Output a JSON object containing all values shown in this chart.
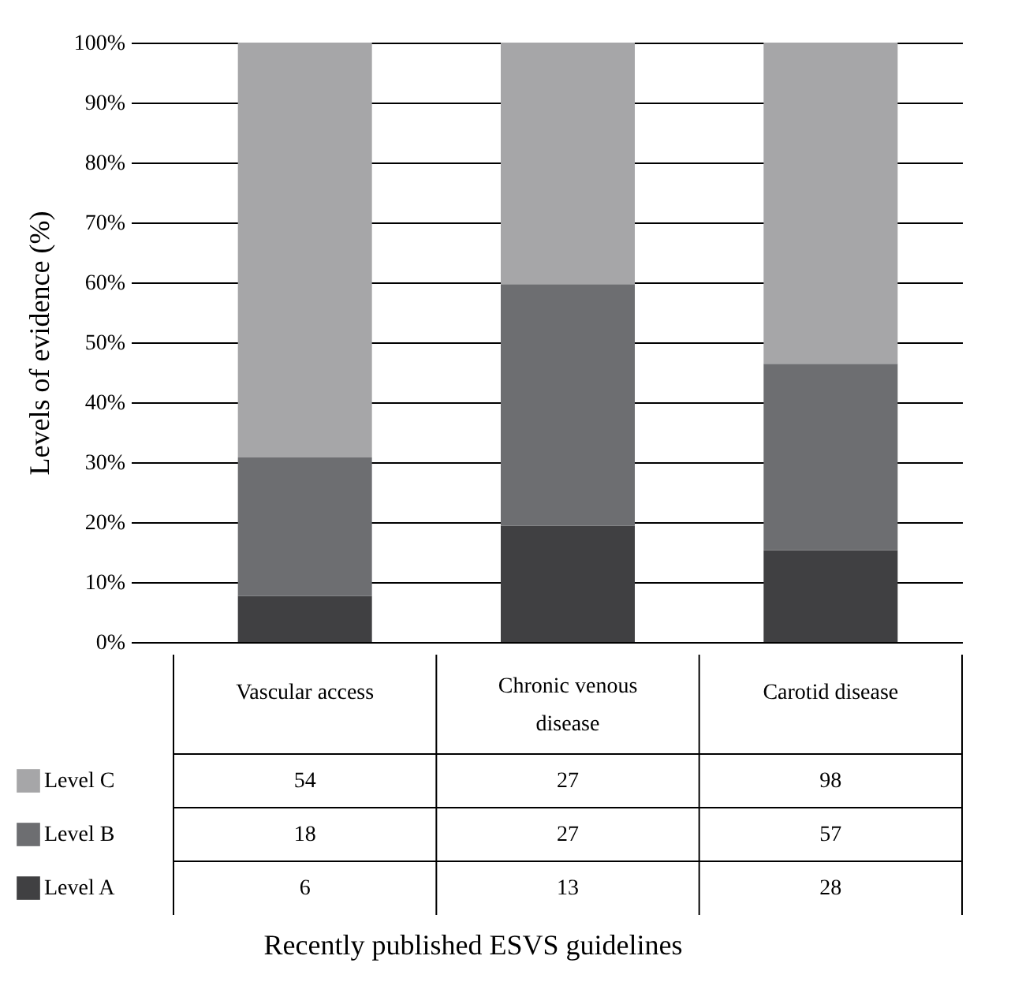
{
  "chart_data": {
    "type": "bar",
    "stacked": true,
    "ylabel": "Levels of evidence (%)",
    "categories": [
      "Vascular access",
      "Chronic venous disease",
      "Carotid disease"
    ],
    "series": [
      {
        "name": "Level A",
        "color": "#404042",
        "values": [
          7.7,
          19.4,
          15.3
        ]
      },
      {
        "name": "Level B",
        "color": "#6d6e71",
        "values": [
          23.1,
          40.3,
          31.1
        ]
      },
      {
        "name": "Level C",
        "color": "#a6a6a8",
        "values": [
          69.2,
          40.3,
          53.6
        ]
      }
    ],
    "annotations": [
      "6",
      "13",
      "28",
      "18",
      "27",
      "57",
      "54",
      "27",
      "98",
      "Recently published ESVS guidelines"
    ],
    "ylim": [
      0,
      100
    ],
    "yticks": [
      {
        "value": 0,
        "label": "0%"
      },
      {
        "value": 10,
        "label": "10%"
      },
      {
        "value": 20,
        "label": "20%"
      },
      {
        "value": 30,
        "label": "30%"
      },
      {
        "value": 40,
        "label": "40%"
      },
      {
        "value": 50,
        "label": "50%"
      },
      {
        "value": 60,
        "label": "60%"
      },
      {
        "value": 70,
        "label": "70%"
      },
      {
        "value": 80,
        "label": "80%"
      },
      {
        "value": 90,
        "label": "90%"
      },
      {
        "value": 100,
        "label": "100%"
      }
    ],
    "grid": "y",
    "legend": "bottom"
  }
}
